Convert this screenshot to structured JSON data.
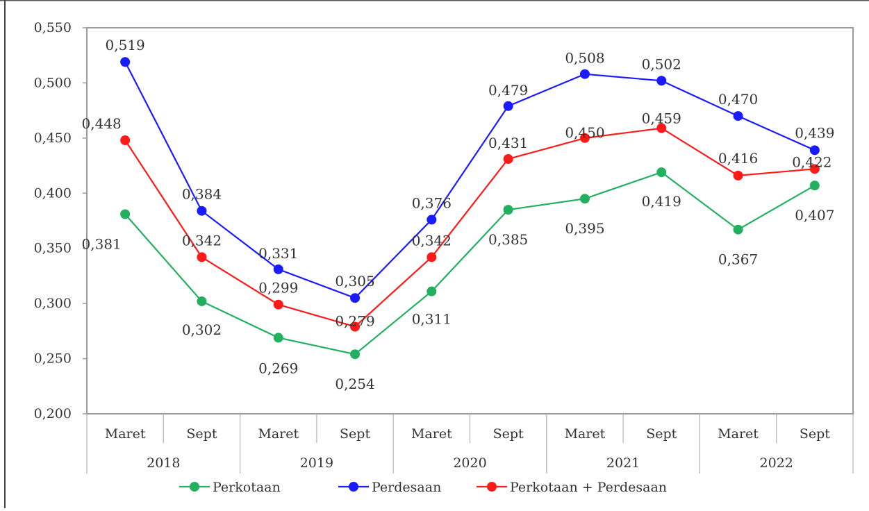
{
  "chart_data": {
    "type": "line",
    "categories": [
      "Maret",
      "Sept",
      "Maret",
      "Sept",
      "Maret",
      "Sept",
      "Maret",
      "Sept",
      "Maret",
      "Sept"
    ],
    "groups": [
      "2018",
      "2019",
      "2020",
      "2021",
      "2022"
    ],
    "ylim": [
      0.2,
      0.55
    ],
    "yticks": [
      "0,200",
      "0,250",
      "0,300",
      "0,350",
      "0,400",
      "0,450",
      "0,500",
      "0,550"
    ],
    "grid": false,
    "legend_position": "bottom",
    "series": [
      {
        "name": "Perkotaan",
        "color": "#22b060",
        "values": [
          0.381,
          0.302,
          0.269,
          0.254,
          0.311,
          0.385,
          0.395,
          0.419,
          0.367,
          0.407
        ],
        "labels": [
          "0,381",
          "0,302",
          "0,269",
          "0,254",
          "0,311",
          "0,385",
          "0,395",
          "0,419",
          "0,367",
          "0,407"
        ]
      },
      {
        "name": "Perdesaan",
        "color": "#1a1aff",
        "values": [
          0.519,
          0.384,
          0.331,
          0.305,
          0.376,
          0.479,
          0.508,
          0.502,
          0.47,
          0.439
        ],
        "labels": [
          "0,519",
          "0,384",
          "0,331",
          "0,305",
          "0,376",
          "0,479",
          "0,508",
          "0,502",
          "0,470",
          "0,439"
        ]
      },
      {
        "name": "Perkotaan + Perdesaan",
        "color": "#ff1a1a",
        "values": [
          0.448,
          0.342,
          0.299,
          0.279,
          0.342,
          0.431,
          0.45,
          0.459,
          0.416,
          0.422
        ],
        "labels": [
          "0,448",
          "0,342",
          "0,299",
          "0,279",
          "0,342",
          "0,431",
          "0,450",
          "0,459",
          "0,416",
          "0,422"
        ]
      }
    ]
  }
}
